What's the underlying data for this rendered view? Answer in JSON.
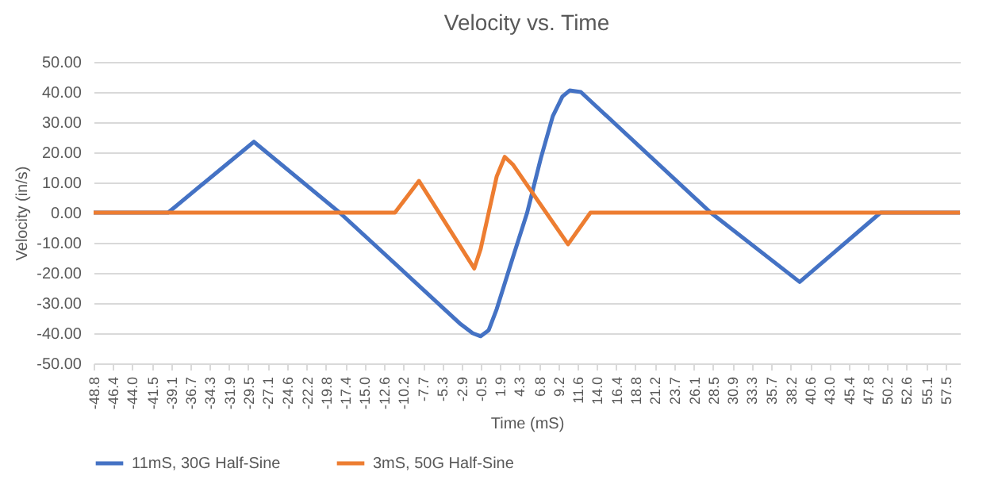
{
  "chart_data": {
    "type": "line",
    "title": "Velocity vs. Time",
    "xlabel": "Time (mS)",
    "ylabel": "Velocity (in/s)",
    "xlim": [
      -48.8,
      59.3
    ],
    "xticks": [
      -48.8,
      -46.4,
      {
        "value": -44,
        "label": "-44.0"
      },
      -41.5,
      -39.1,
      -36.7,
      -34.3,
      -31.9,
      -29.5,
      -27.1,
      -24.6,
      -22.2,
      -19.8,
      -17.4,
      {
        "value": -15,
        "label": "-15.0"
      },
      -12.6,
      -10.2,
      -7.7,
      -5.3,
      -2.9,
      -0.5,
      1.9,
      4.3,
      6.8,
      9.2,
      11.6,
      {
        "value": 14,
        "label": "14.0"
      },
      16.4,
      18.8,
      21.2,
      23.7,
      26.1,
      28.5,
      30.9,
      33.3,
      35.7,
      38.2,
      40.6,
      {
        "value": 43,
        "label": "43.0"
      },
      45.4,
      47.8,
      50.2,
      52.6,
      55.1,
      57.5
    ],
    "ylim": [
      -50,
      50
    ],
    "yticks": [
      {
        "value": -50,
        "label": "-50.00"
      },
      {
        "value": -40,
        "label": "-40.00"
      },
      {
        "value": -30,
        "label": "-30.00"
      },
      {
        "value": -20,
        "label": "-20.00"
      },
      {
        "value": -10,
        "label": "-10.00"
      },
      {
        "value": 0,
        "label": "0.00"
      },
      {
        "value": 10,
        "label": "10.00"
      },
      {
        "value": 20,
        "label": "20.00"
      },
      {
        "value": 30,
        "label": "30.00"
      },
      {
        "value": 40,
        "label": "40.00"
      },
      {
        "value": 50,
        "label": "50.00"
      }
    ],
    "grid": "y",
    "legend": "bottom",
    "marker": "none",
    "line_style": "solid",
    "series": [
      {
        "name": "11mS, 30G Half-Sine",
        "color": "#4472c4",
        "x": [
          -48.8,
          -39.5,
          -28.8,
          -18.1,
          -3,
          -1.5,
          -0.5,
          0.5,
          1.5,
          3.5,
          5.3,
          7,
          8.5,
          9.7,
          10.6,
          12,
          28.2,
          39.3,
          49.4,
          59.3
        ],
        "values": [
          0,
          0,
          23.5,
          0,
          -37,
          -40,
          -41,
          -39,
          -32,
          -15,
          0,
          18,
          32,
          38.5,
          40.5,
          40,
          0,
          -23,
          0,
          0
        ]
      },
      {
        "name": "3mS, 50G Half-Sine",
        "color": "#ed7d31",
        "x": [
          -48.8,
          -11.2,
          -8.2,
          -1.3,
          -0.5,
          0.5,
          1.5,
          2.5,
          3.5,
          10.4,
          13.2,
          59.3
        ],
        "values": [
          0,
          0,
          10.5,
          -18.5,
          -12,
          0,
          12,
          18.5,
          16,
          -10.5,
          0,
          0
        ]
      }
    ]
  }
}
